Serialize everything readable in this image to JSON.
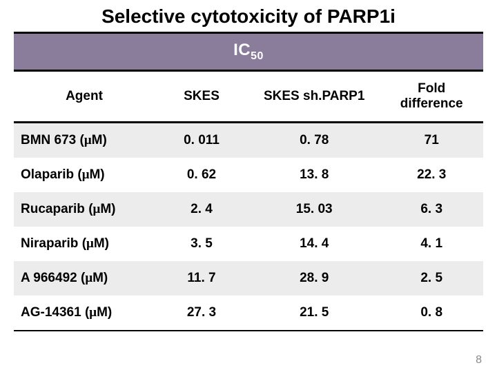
{
  "title_text": "Selective cytotoxicity of PARP1i",
  "ic50_label_html": "IC",
  "ic50_sub": "50",
  "header_bg": "#8a7d9b",
  "row_alt_bg": "#ececec",
  "columns": [
    "Agent",
    "SKES",
    "SKES sh.PARP1",
    "Fold difference"
  ],
  "rows": [
    {
      "agent": "BMN 673 (μM)",
      "skes": "0. 011",
      "skes_sh": "0. 78",
      "fold": "71"
    },
    {
      "agent": "Olaparib (μM)",
      "skes": "0. 62",
      "skes_sh": "13. 8",
      "fold": "22. 3"
    },
    {
      "agent": "Rucaparib (μM)",
      "skes": "2. 4",
      "skes_sh": "15. 03",
      "fold": "6. 3"
    },
    {
      "agent": "Niraparib (μM)",
      "skes": "3. 5",
      "skes_sh": "14. 4",
      "fold": "4. 1"
    },
    {
      "agent": "A 966492 (μM)",
      "skes": "11. 7",
      "skes_sh": "28. 9",
      "fold": "2. 5"
    },
    {
      "agent": "AG-14361 (μM)",
      "skes": "27. 3",
      "skes_sh": "21. 5",
      "fold": "0. 8"
    }
  ],
  "page_number": "8",
  "col_widths": [
    "30%",
    "20%",
    "28%",
    "22%"
  ]
}
